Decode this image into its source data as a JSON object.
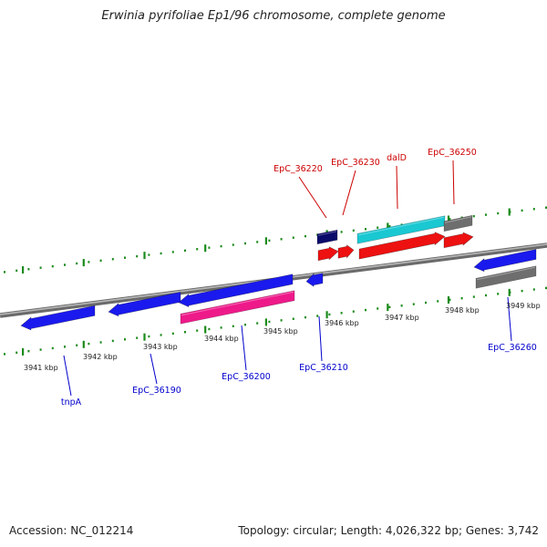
{
  "title": "Erwinia pyrifoliae Ep1/96 chromosome, complete genome",
  "footer": {
    "accession": "Accession: NC_012214",
    "topology": "Topology: circular; Length: 4,026,322 bp; Genes: 3,742"
  },
  "colors": {
    "backbone": "#8a8a8a",
    "tick": "#1a8a1a",
    "forward_label": "#cc0000",
    "reverse_label": "#0000cc"
  },
  "ticks_kbp": [
    {
      "kbp": 3941,
      "label": "3941 kbp"
    },
    {
      "kbp": 3942,
      "label": "3942 kbp"
    },
    {
      "kbp": 3943,
      "label": "3943 kbp"
    },
    {
      "kbp": 3944,
      "label": "3944 kbp"
    },
    {
      "kbp": 3945,
      "label": "3945 kbp"
    },
    {
      "kbp": 3946,
      "label": "3946 kbp"
    },
    {
      "kbp": 3947,
      "label": "3947 kbp"
    },
    {
      "kbp": 3948,
      "label": "3948 kbp"
    },
    {
      "kbp": 3949,
      "label": "3949 kbp"
    }
  ],
  "forward_labels": [
    "EpC_36220",
    "EpC_36230",
    "dalD",
    "EpC_36250"
  ],
  "reverse_labels": [
    "tnpA",
    "EpC_36190",
    "EpC_36200",
    "EpC_36210",
    "EpC_36260"
  ],
  "genes": [
    {
      "name": "tnpA",
      "strand": "reverse",
      "color": "#1a1aee"
    },
    {
      "name": "EpC_36190",
      "strand": "reverse",
      "color": "#1a1aee"
    },
    {
      "name": "EpC_36200",
      "strand": "reverse",
      "color": "#1a1aee",
      "product_color": "#ee1a8a"
    },
    {
      "name": "EpC_36210",
      "strand": "reverse",
      "color": "#1a1aee"
    },
    {
      "name": "EpC_36220",
      "strand": "forward",
      "color": "#ee1111",
      "product_color": "#0a0a6a"
    },
    {
      "name": "EpC_36230",
      "strand": "forward",
      "color": "#ee1111"
    },
    {
      "name": "dalD",
      "strand": "forward",
      "color": "#ee1111",
      "product_color": "#1ac8d2"
    },
    {
      "name": "EpC_36250",
      "strand": "forward",
      "color": "#ee1111",
      "product_color": "#6e6e6e"
    },
    {
      "name": "EpC_36260",
      "strand": "reverse",
      "color": "#1a1aee",
      "product_color": "#6e6e6e"
    }
  ]
}
